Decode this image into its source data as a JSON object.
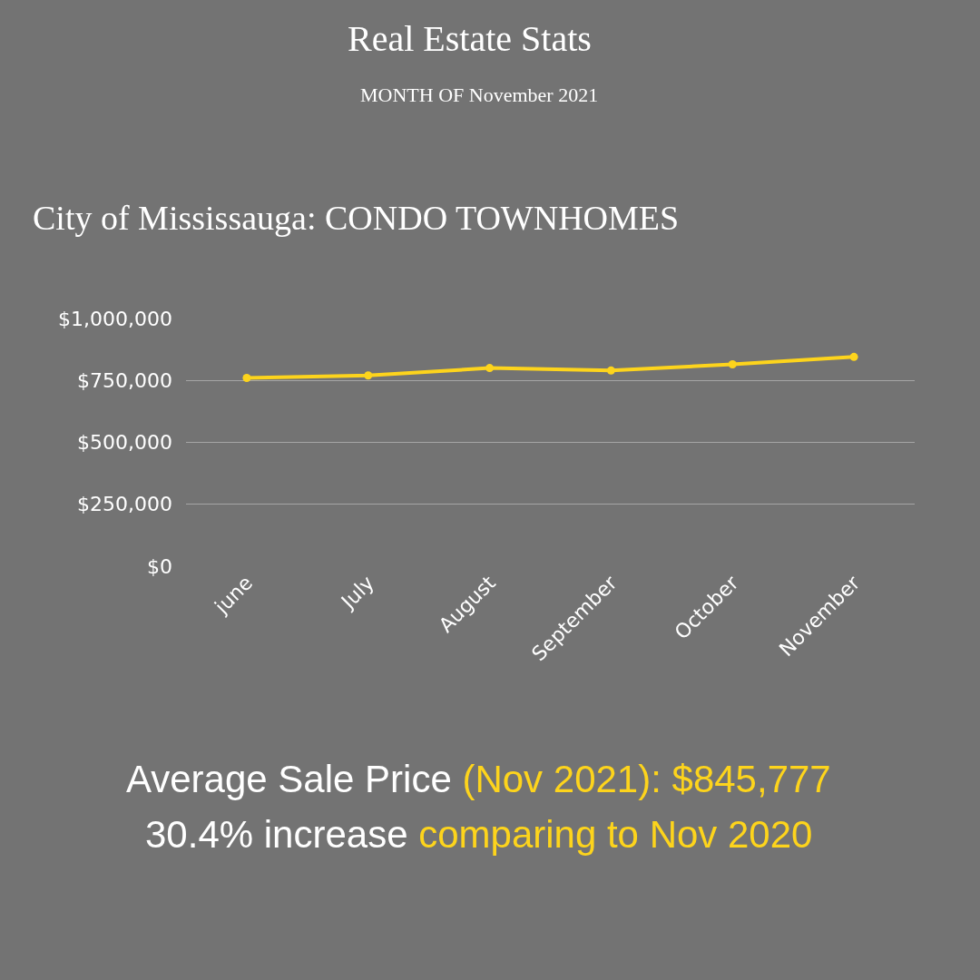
{
  "chart_data": {
    "type": "line",
    "title": "Real Estate Stats",
    "subtitle": "MONTH OF November 2021",
    "annotations": [
      "City of Mississauga: CONDO TOWNHOMES",
      "Average Sale Price ",
      "(Nov 2021): $845,777",
      "30.4% increase ",
      "comparing to Nov 2020"
    ],
    "categories": [
      "june",
      "July",
      "August",
      "September",
      "October",
      "November"
    ],
    "series": [
      {
        "color": "#fdd41c",
        "values": [
          760000,
          770000,
          800000,
          790000,
          815000,
          845000
        ]
      }
    ],
    "ylim": [
      0,
      1000000
    ],
    "yticks": [
      {
        "value": 0,
        "label": "$0"
      },
      {
        "value": 250000,
        "label": "$250,000"
      },
      {
        "value": 500000,
        "label": "$500,000"
      },
      {
        "value": 750000,
        "label": "$750,000"
      },
      {
        "value": 1000000,
        "label": "$1,000,000"
      }
    ],
    "grid": "y",
    "marker": "circle",
    "line_style": "solid"
  }
}
